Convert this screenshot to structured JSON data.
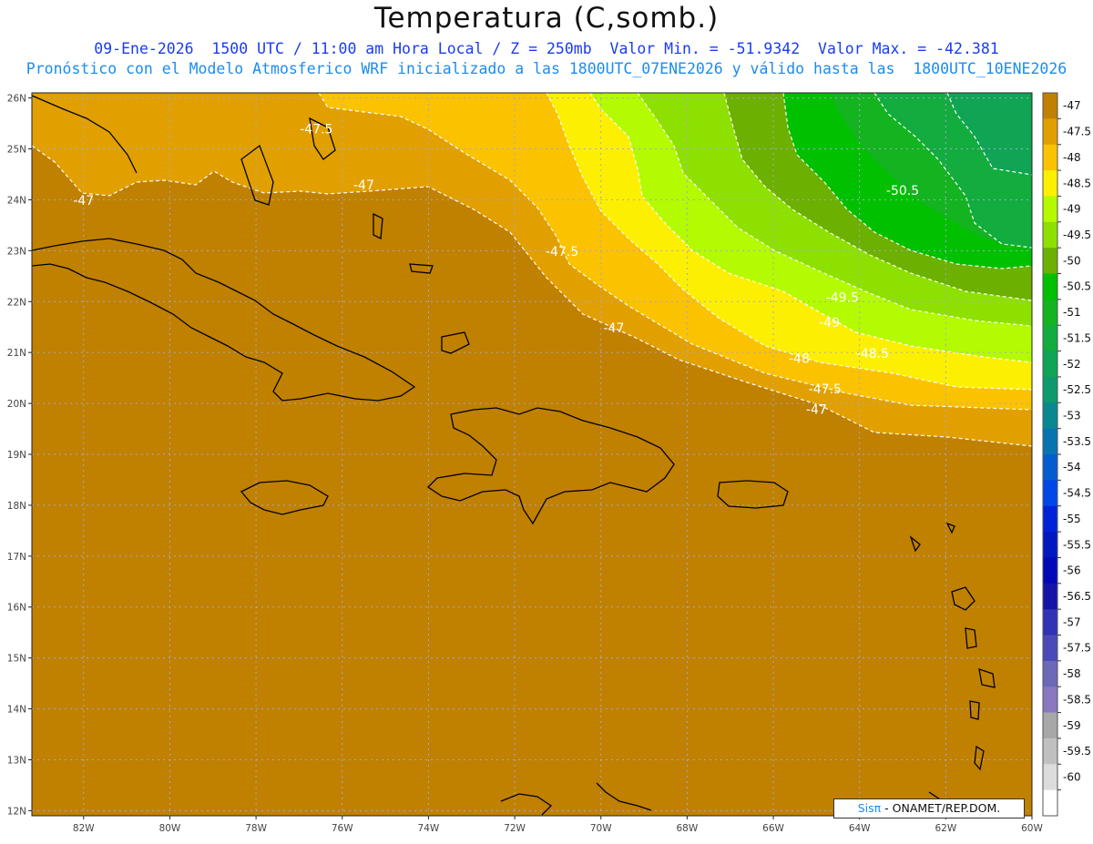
{
  "header": {
    "title": "Temperatura (C,somb.)",
    "subtitle_line1": "09-Ene-2026  1500 UTC / 11:00 am Hora Local / Z = 250mb  Valor Min. = -51.9342  Valor Max. = -42.381",
    "subtitle_line2": "Pronóstico con el Modelo Atmosferico WRF inicializado a las 1800UTC_07ENE2026 y válido hasta las  1800UTC_10ENE2026"
  },
  "map": {
    "lon_range": [
      -83.2,
      -60
    ],
    "lat_range": [
      11.9,
      26.1
    ],
    "lat_ticks": [
      "26N",
      "25N",
      "24N",
      "23N",
      "22N",
      "21N",
      "20N",
      "19N",
      "18N",
      "17N",
      "16N",
      "15N",
      "14N",
      "13N",
      "12N"
    ],
    "lon_ticks": [
      "82W",
      "80W",
      "78W",
      "76W",
      "74W",
      "72W",
      "70W",
      "68W",
      "66W",
      "64W",
      "62W",
      "60W"
    ],
    "grid": "dotted",
    "background_color": "#c08000",
    "contour_labels": [
      {
        "text": "-47.5",
        "lon": -76.6,
        "lat": 25.3
      },
      {
        "text": "-47",
        "lon": -75.5,
        "lat": 24.2
      },
      {
        "text": "-47",
        "lon": -82.0,
        "lat": 23.9
      },
      {
        "text": "-47.5",
        "lon": -70.9,
        "lat": 22.9
      },
      {
        "text": "-47",
        "lon": -69.7,
        "lat": 21.4
      },
      {
        "text": "-50.5",
        "lon": -63.0,
        "lat": 24.1
      },
      {
        "text": "-49.5",
        "lon": -64.4,
        "lat": 22.0
      },
      {
        "text": "-49",
        "lon": -64.7,
        "lat": 21.5
      },
      {
        "text": "-48.5",
        "lon": -63.7,
        "lat": 20.9
      },
      {
        "text": "-48",
        "lon": -65.4,
        "lat": 20.8
      },
      {
        "text": "-47.5",
        "lon": -64.8,
        "lat": 20.2
      },
      {
        "text": "-47",
        "lon": -65.0,
        "lat": 19.8
      }
    ]
  },
  "colorbar": {
    "labels": [
      "-47",
      "-47.5",
      "-48",
      "-48.5",
      "-49",
      "-49.5",
      "-50",
      "-50.5",
      "-51",
      "-51.5",
      "-52",
      "-52.5",
      "-53",
      "-53.5",
      "-54",
      "-54.5",
      "-55",
      "-55.5",
      "-56",
      "-56.5",
      "-57",
      "-57.5",
      "-58",
      "-58.5",
      "-59",
      "-59.5",
      "-60"
    ],
    "colors": [
      "#c08000",
      "#e1a000",
      "#fbc200",
      "#fcf000",
      "#b4fa00",
      "#8ee000",
      "#6cb000",
      "#00c000",
      "#13b41f",
      "#12ac3f",
      "#10a555",
      "#0c9a6e",
      "#09898f",
      "#0773b0",
      "#045dd0",
      "#0147e8",
      "#0023d8",
      "#0018c0",
      "#0008b8",
      "#1414a8",
      "#3232b4",
      "#4a4ab8",
      "#6a6ab8",
      "#8a78c0",
      "#a8a8a8",
      "#c0c0c0",
      "#dcdcdc",
      "#ffffff"
    ]
  },
  "credit": {
    "sis": "Sisπ",
    "text": "- ONAMET/REP.DOM."
  }
}
